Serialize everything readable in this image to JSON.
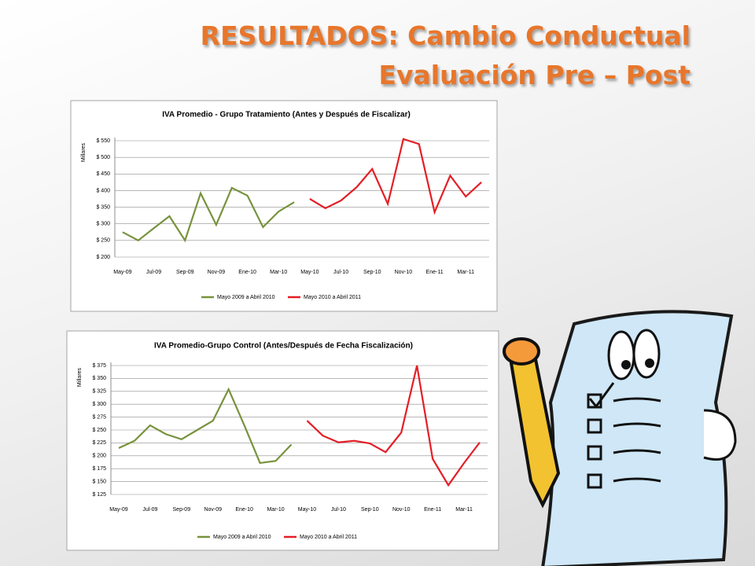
{
  "slide": {
    "title_lines": [
      "RESULTADOS: Cambio Conductual",
      "Evaluación Pre – Post"
    ]
  },
  "chart_data": [
    {
      "type": "line",
      "title": "IVA Promedio - Grupo Tratamiento (Antes y Después de Fiscalizar)",
      "y_label": "Millares",
      "categories": [
        "May-09",
        null,
        "Jul-09",
        null,
        "Sep-09",
        null,
        "Nov-09",
        null,
        "Ene-10",
        null,
        "Mar-10",
        null,
        "May-10",
        null,
        "Jul-10",
        null,
        "Sep-10",
        null,
        "Nov-10",
        null,
        "Ene-11",
        null,
        "Mar-11",
        null
      ],
      "series": [
        {
          "name": "Mayo 2009 a Abril 2010",
          "color": "#77933c",
          "values": [
            275,
            250,
            287,
            323,
            250,
            392,
            297,
            408,
            385,
            290,
            337,
            365,
            null,
            null,
            null,
            null,
            null,
            null,
            null,
            null,
            null,
            null,
            null,
            null
          ]
        },
        {
          "name": "Mayo 2010 a Abril 2011",
          "color": "#e41e26",
          "values": [
            null,
            null,
            null,
            null,
            null,
            null,
            null,
            null,
            null,
            null,
            null,
            null,
            375,
            347,
            370,
            410,
            465,
            360,
            555,
            540,
            335,
            445,
            382,
            425
          ]
        }
      ],
      "ylim": [
        200,
        550
      ],
      "yticks": [
        {
          "value": 200,
          "label": "$ 200"
        },
        {
          "value": 250,
          "label": "$ 250"
        },
        {
          "value": 300,
          "label": "$ 300"
        },
        {
          "value": 350,
          "label": "$ 350"
        },
        {
          "value": 400,
          "label": "$ 400"
        },
        {
          "value": 450,
          "label": "$ 450"
        },
        {
          "value": 500,
          "label": "$ 500"
        },
        {
          "value": 550,
          "label": "$ 550"
        }
      ],
      "grid": true,
      "legend": "bottom"
    },
    {
      "type": "line",
      "title": "IVA Promedio-Grupo Control (Antes/Después de Fecha Fiscalización)",
      "y_label": "Millares",
      "categories": [
        "May-09",
        null,
        "Jul-09",
        null,
        "Sep-09",
        null,
        "Nov-09",
        null,
        "Ene-10",
        null,
        "Mar-10",
        null,
        "May-10",
        null,
        "Jul-10",
        null,
        "Sep-10",
        null,
        "Nov-10",
        null,
        "Ene-11",
        null,
        "Mar-11",
        null
      ],
      "series": [
        {
          "name": "Mayo 2009 a Abril 2010",
          "color": "#77933c",
          "values": [
            215,
            229,
            259,
            242,
            232,
            250,
            268,
            329,
            259,
            186,
            190,
            222,
            null,
            null,
            null,
            null,
            null,
            null,
            null,
            null,
            null,
            null,
            null,
            null
          ]
        },
        {
          "name": "Mayo 2010 a Abril 2011",
          "color": "#e41e26",
          "values": [
            null,
            null,
            null,
            null,
            null,
            null,
            null,
            null,
            null,
            null,
            null,
            null,
            268,
            239,
            226,
            229,
            224,
            207,
            245,
            375,
            194,
            143,
            186,
            226
          ]
        }
      ],
      "ylim": [
        125,
        375
      ],
      "yticks": [
        {
          "value": 125,
          "label": "$ 125"
        },
        {
          "value": 150,
          "label": "$ 150"
        },
        {
          "value": 175,
          "label": "$ 175"
        },
        {
          "value": 200,
          "label": "$ 200"
        },
        {
          "value": 225,
          "label": "$ 225"
        },
        {
          "value": 250,
          "label": "$ 250"
        },
        {
          "value": 275,
          "label": "$ 275"
        },
        {
          "value": 300,
          "label": "$ 300"
        },
        {
          "value": 325,
          "label": "$ 325"
        },
        {
          "value": 350,
          "label": "$ 350"
        },
        {
          "value": 375,
          "label": "$ 375"
        }
      ],
      "grid": true,
      "legend": "bottom"
    }
  ]
}
